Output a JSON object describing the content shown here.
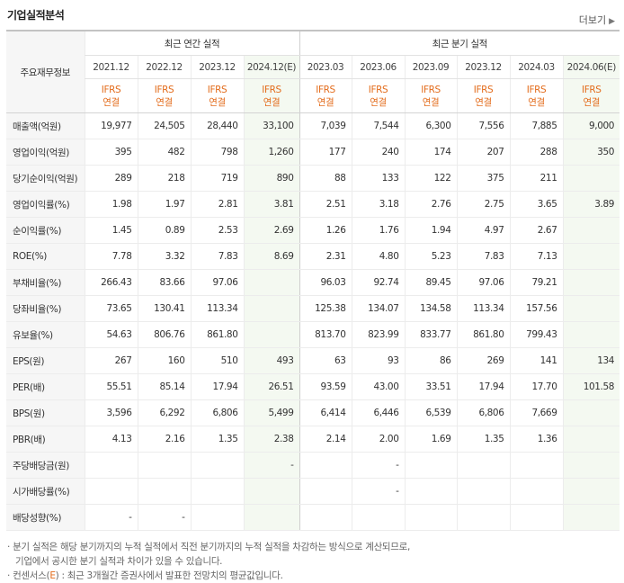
{
  "section_title": "기업실적분석",
  "more_label": "더보기",
  "more_icon": "chevron-right-icon",
  "table": {
    "corner_label": "주요재무정보",
    "annual_header": "최근 연간 실적",
    "quarterly_header": "최근 분기 실적",
    "annual_periods": [
      "2021.12",
      "2022.12",
      "2023.12",
      "2024.12(E)"
    ],
    "quarterly_periods": [
      "2023.03",
      "2023.06",
      "2023.09",
      "2023.12",
      "2024.03",
      "2024.06(E)"
    ],
    "ifrs_line1": "IFRS",
    "ifrs_line2": "연결",
    "accent_color": "#e36c1c",
    "estimate_bg": "#f4f9f1",
    "rows": [
      {
        "label": "매출액(억원)",
        "values": [
          "19,977",
          "24,505",
          "28,440",
          "33,100",
          "7,039",
          "7,544",
          "6,300",
          "7,556",
          "7,885",
          "9,000"
        ]
      },
      {
        "label": "영업이익(억원)",
        "values": [
          "395",
          "482",
          "798",
          "1,260",
          "177",
          "240",
          "174",
          "207",
          "288",
          "350"
        ]
      },
      {
        "label": "당기순이익(억원)",
        "values": [
          "289",
          "218",
          "719",
          "890",
          "88",
          "133",
          "122",
          "375",
          "211",
          ""
        ]
      },
      {
        "label": "영업이익률(%)",
        "values": [
          "1.98",
          "1.97",
          "2.81",
          "3.81",
          "2.51",
          "3.18",
          "2.76",
          "2.75",
          "3.65",
          "3.89"
        ]
      },
      {
        "label": "순이익률(%)",
        "values": [
          "1.45",
          "0.89",
          "2.53",
          "2.69",
          "1.26",
          "1.76",
          "1.94",
          "4.97",
          "2.67",
          ""
        ]
      },
      {
        "label": "ROE(%)",
        "values": [
          "7.78",
          "3.32",
          "7.83",
          "8.69",
          "2.31",
          "4.80",
          "5.23",
          "7.83",
          "7.13",
          ""
        ]
      },
      {
        "label": "부채비율(%)",
        "values": [
          "266.43",
          "83.66",
          "97.06",
          "",
          "96.03",
          "92.74",
          "89.45",
          "97.06",
          "79.21",
          ""
        ]
      },
      {
        "label": "당좌비율(%)",
        "values": [
          "73.65",
          "130.41",
          "113.34",
          "",
          "125.38",
          "134.07",
          "134.58",
          "113.34",
          "157.56",
          ""
        ]
      },
      {
        "label": "유보율(%)",
        "values": [
          "54.63",
          "806.76",
          "861.80",
          "",
          "813.70",
          "823.99",
          "833.77",
          "861.80",
          "799.43",
          ""
        ]
      },
      {
        "label": "EPS(원)",
        "values": [
          "267",
          "160",
          "510",
          "493",
          "63",
          "93",
          "86",
          "269",
          "141",
          "134"
        ]
      },
      {
        "label": "PER(배)",
        "values": [
          "55.51",
          "85.14",
          "17.94",
          "26.51",
          "93.59",
          "43.00",
          "33.51",
          "17.94",
          "17.70",
          "101.58"
        ]
      },
      {
        "label": "BPS(원)",
        "values": [
          "3,596",
          "6,292",
          "6,806",
          "5,499",
          "6,414",
          "6,446",
          "6,539",
          "6,806",
          "7,669",
          ""
        ]
      },
      {
        "label": "PBR(배)",
        "values": [
          "4.13",
          "2.16",
          "1.35",
          "2.38",
          "2.14",
          "2.00",
          "1.69",
          "1.35",
          "1.36",
          ""
        ]
      },
      {
        "label": "주당배당금(원)",
        "values": [
          "",
          "",
          "",
          "-",
          "",
          "-",
          "",
          "",
          "",
          ""
        ]
      },
      {
        "label": "시가배당률(%)",
        "values": [
          "",
          "",
          "",
          "",
          "",
          "-",
          "",
          "",
          "",
          ""
        ]
      },
      {
        "label": "배당성향(%)",
        "values": [
          "-",
          "-",
          "",
          "",
          "",
          "",
          "",
          "",
          "",
          ""
        ]
      }
    ]
  },
  "notes": {
    "line1": "· 분기 실적은 해당 분기까지의 누적 실적에서 직전 분기까지의 누적 실적을 차감하는 방식으로 계산되므로,",
    "line2": "기업에서 공시한 분기 실적과 차이가 있을 수 있습니다.",
    "line3_prefix": "· 컨센서스(",
    "line3_e": "E",
    "line3_suffix": ") : 최근 3개월간 증권사에서 발표한 전망치의 평균값입니다."
  }
}
